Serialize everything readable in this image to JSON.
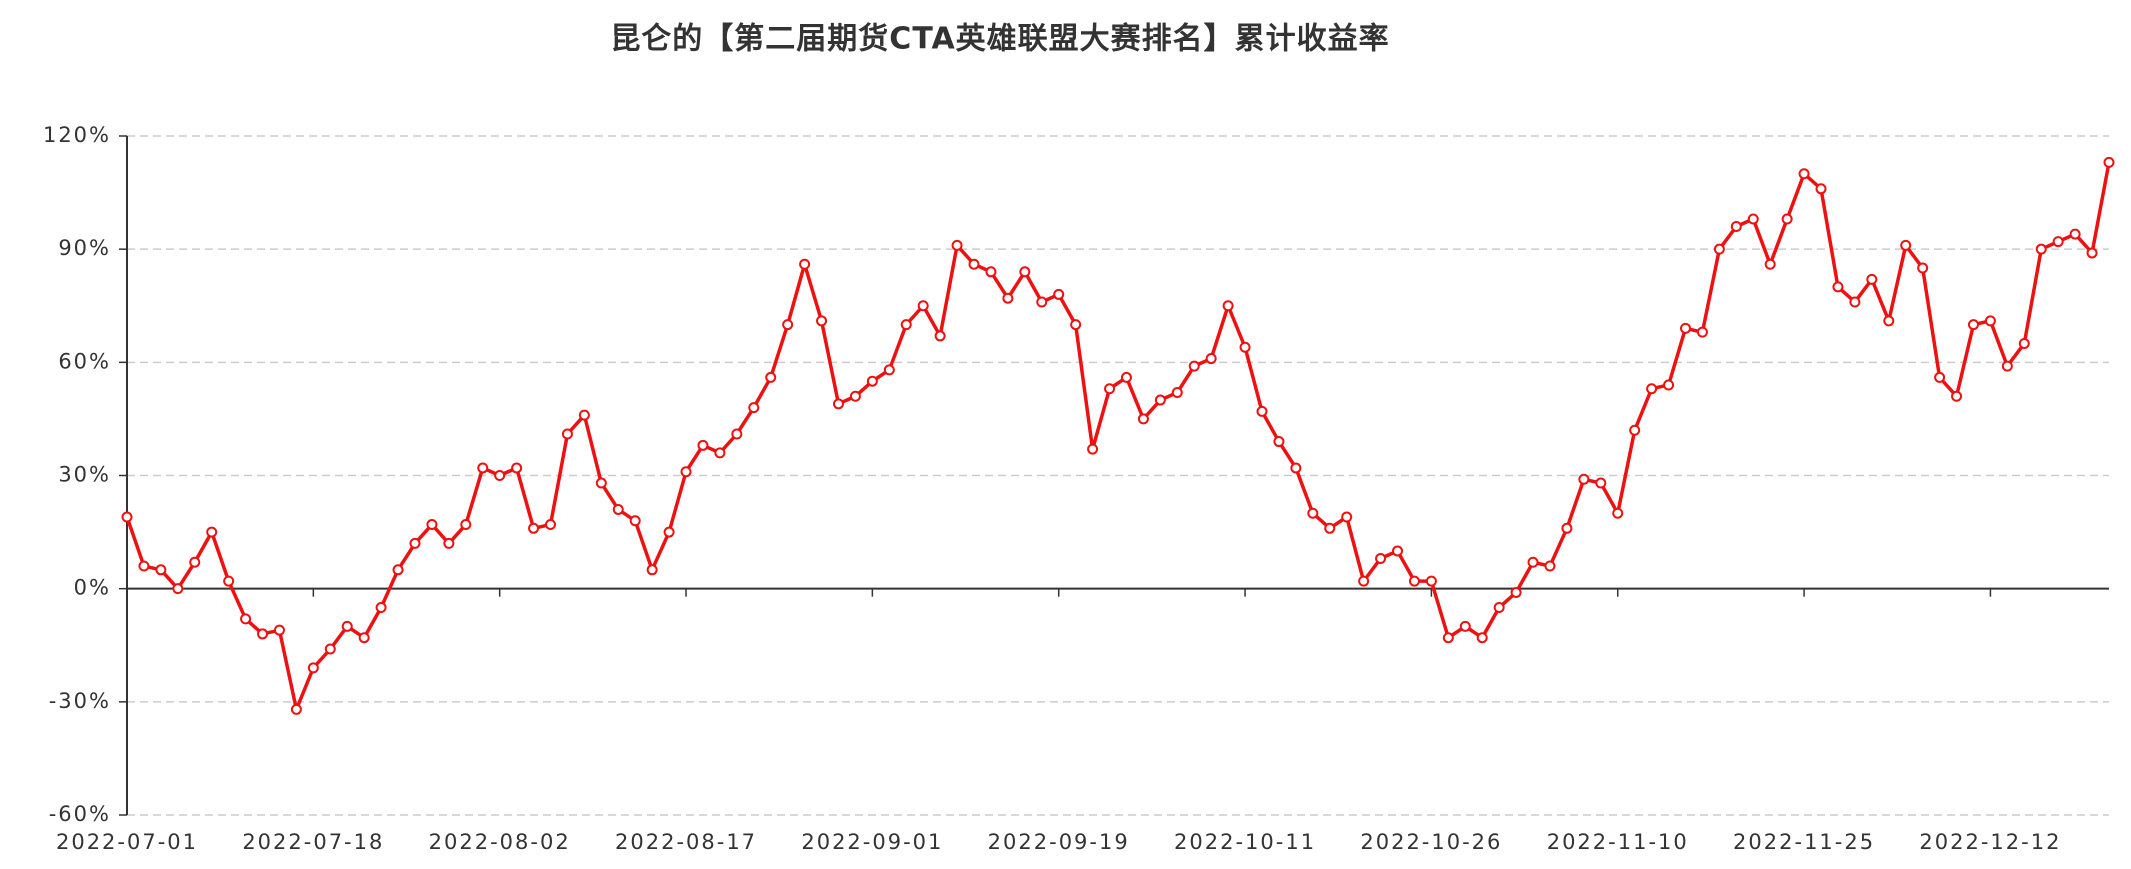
{
  "chart_data": {
    "type": "line",
    "title": "昆仑的【第二届期货CTA英雄联盟大赛排名】累计收益率",
    "categories": [
      "2022-07-01",
      null,
      null,
      null,
      null,
      null,
      null,
      null,
      null,
      null,
      null,
      "2022-07-18",
      null,
      null,
      null,
      null,
      null,
      null,
      null,
      null,
      null,
      null,
      "2022-08-02",
      null,
      null,
      null,
      null,
      null,
      null,
      null,
      null,
      null,
      null,
      "2022-08-17",
      null,
      null,
      null,
      null,
      null,
      null,
      null,
      null,
      null,
      null,
      "2022-09-01",
      null,
      null,
      null,
      null,
      null,
      null,
      null,
      null,
      null,
      null,
      "2022-09-19",
      null,
      null,
      null,
      null,
      null,
      null,
      null,
      null,
      null,
      null,
      "2022-10-11",
      null,
      null,
      null,
      null,
      null,
      null,
      null,
      null,
      null,
      null,
      "2022-10-26",
      null,
      null,
      null,
      null,
      null,
      null,
      null,
      null,
      null,
      null,
      "2022-11-10",
      null,
      null,
      null,
      null,
      null,
      null,
      null,
      null,
      null,
      null,
      "2022-11-25",
      null,
      null,
      null,
      null,
      null,
      null,
      null,
      null,
      null,
      null,
      "2022-12-12",
      null,
      null,
      null,
      null,
      null,
      null,
      null
    ],
    "series": [
      {
        "name": "累计收益率",
        "color": "#ee1111",
        "values": [
          19,
          6,
          5,
          0,
          7,
          15,
          2,
          -8,
          -12,
          -11,
          -32,
          -21,
          -16,
          -10,
          -13,
          -5,
          5,
          12,
          17,
          12,
          17,
          32,
          30,
          32,
          16,
          17,
          41,
          46,
          28,
          21,
          18,
          5,
          15,
          31,
          38,
          36,
          41,
          48,
          56,
          70,
          86,
          71,
          49,
          51,
          55,
          58,
          70,
          75,
          67,
          91,
          86,
          84,
          77,
          84,
          76,
          78,
          70,
          37,
          53,
          56,
          45,
          50,
          52,
          59,
          61,
          75,
          64,
          47,
          39,
          32,
          20,
          16,
          19,
          2,
          8,
          10,
          2,
          2,
          -13,
          -10,
          -13,
          -5,
          -1,
          7,
          6,
          16,
          29,
          28,
          20,
          42,
          53,
          54,
          69,
          68,
          90,
          96,
          98,
          86,
          98,
          110,
          106,
          80,
          76,
          82,
          71,
          91,
          85,
          56,
          51,
          70,
          71,
          59,
          65,
          90,
          92,
          94,
          89,
          113
        ]
      }
    ],
    "ylim": [
      -60,
      120
    ],
    "yticks": [
      {
        "value": -60,
        "label": "-60%"
      },
      {
        "value": -30,
        "label": "-30%"
      },
      {
        "value": 0,
        "label": "0%"
      },
      {
        "value": 30,
        "label": "30%"
      },
      {
        "value": 60,
        "label": "60%"
      },
      {
        "value": 90,
        "label": "90%"
      },
      {
        "value": 120,
        "label": "120%"
      }
    ],
    "grid": true
  }
}
